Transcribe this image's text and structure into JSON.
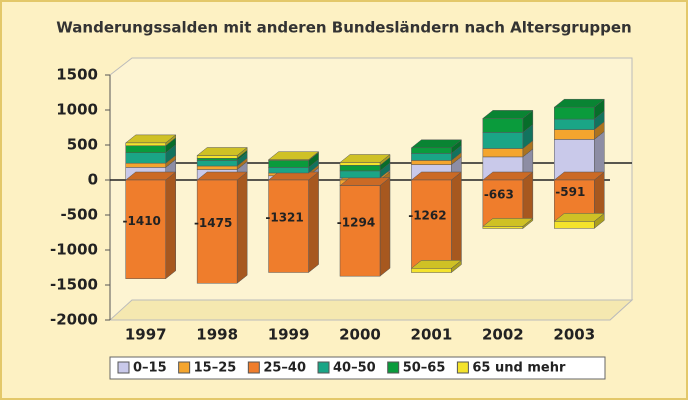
{
  "chart_data": {
    "type": "bar",
    "stacked": true,
    "title": "Wanderungssalden mit anderen Bundesländern nach Altersgruppen",
    "categories": [
      "1997",
      "1998",
      "1999",
      "2000",
      "2001",
      "2002",
      "2003"
    ],
    "series": [
      {
        "name": "0–15",
        "color": "#c9c9ea",
        "values": [
          180,
          150,
          60,
          30,
          220,
          330,
          580
        ]
      },
      {
        "name": "15–25",
        "color": "#f4a52e",
        "values": [
          60,
          50,
          40,
          -80,
          60,
          120,
          140
        ]
      },
      {
        "name": "25–40",
        "color": "#ef7d2c",
        "values": [
          -1410,
          -1475,
          -1321,
          -1294,
          -1262,
          -663,
          -591
        ],
        "data_labels": true
      },
      {
        "name": "40–50",
        "color": "#1aa586",
        "values": [
          150,
          80,
          80,
          100,
          100,
          230,
          150
        ]
      },
      {
        "name": "50–65",
        "color": "#0a9b3c",
        "values": [
          100,
          30,
          100,
          80,
          80,
          200,
          170
        ]
      },
      {
        "name": "65 und mehr",
        "color": "#f4e32c",
        "values": [
          40,
          40,
          10,
          40,
          -60,
          -30,
          -100
        ]
      }
    ],
    "ylim": [
      -2000,
      1500
    ],
    "yticks": [
      -2000,
      -1500,
      -1000,
      -500,
      0,
      500,
      1000,
      1500
    ],
    "legend": "bottom"
  }
}
